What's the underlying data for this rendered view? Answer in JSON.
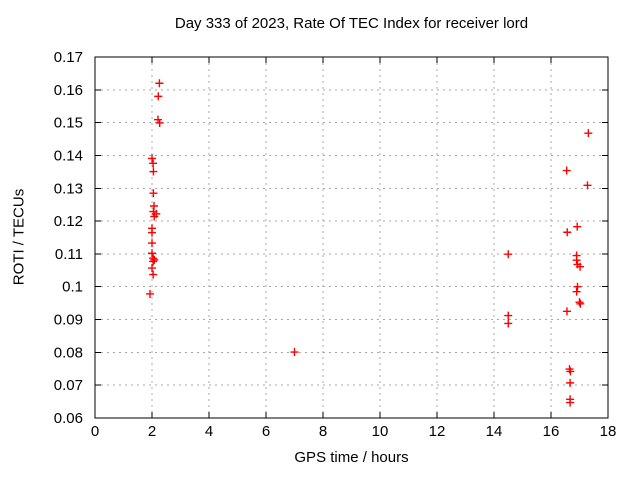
{
  "chart_data": {
    "type": "scatter",
    "title": "Day 333 of 2023, Rate Of TEC Index for receiver lord",
    "xlabel": "GPS time / hours",
    "ylabel": "ROTI / TECUs",
    "xlim": [
      0,
      18
    ],
    "ylim": [
      0.06,
      0.17
    ],
    "xticks": [
      0,
      2,
      4,
      6,
      8,
      10,
      12,
      14,
      16,
      18
    ],
    "xtick_labels": [
      "0",
      "2",
      "4",
      "6",
      "8",
      "10",
      "12",
      "14",
      "16",
      "18"
    ],
    "yticks": [
      0.06,
      0.07,
      0.08,
      0.09,
      0.1,
      0.11,
      0.12,
      0.13,
      0.14,
      0.15,
      0.16,
      0.17
    ],
    "ytick_labels": [
      "0.06",
      "0.07",
      "0.08",
      "0.09",
      "0.1",
      "0.11",
      "0.12",
      "0.13",
      "0.14",
      "0.15",
      "0.16",
      "0.17"
    ],
    "grid": true,
    "legend_position": "none",
    "marker": "plus",
    "marker_color": "#ff0000",
    "grid_color": "#a8a8a8",
    "axis_color": "#000000",
    "background_color": "#ffffff",
    "points": [
      [
        2.26,
        0.162
      ],
      [
        2.22,
        0.158
      ],
      [
        2.21,
        0.1509
      ],
      [
        2.27,
        0.1499
      ],
      [
        2.0,
        0.1391
      ],
      [
        2.04,
        0.1376
      ],
      [
        2.05,
        0.1351
      ],
      [
        2.05,
        0.1285
      ],
      [
        2.07,
        0.1246
      ],
      [
        2.05,
        0.1229
      ],
      [
        2.15,
        0.1222
      ],
      [
        2.08,
        0.1214
      ],
      [
        2.0,
        0.1178
      ],
      [
        2.0,
        0.1165
      ],
      [
        2.0,
        0.1133
      ],
      [
        2.0,
        0.1102
      ],
      [
        2.04,
        0.1087
      ],
      [
        2.08,
        0.1082
      ],
      [
        2.04,
        0.1077
      ],
      [
        2.0,
        0.1057
      ],
      [
        2.04,
        0.1037
      ],
      [
        1.93,
        0.0978
      ],
      [
        7.0,
        0.0801
      ],
      [
        14.5,
        0.1099
      ],
      [
        14.5,
        0.0912
      ],
      [
        14.5,
        0.0888
      ],
      [
        17.31,
        0.1468
      ],
      [
        16.55,
        0.1354
      ],
      [
        17.28,
        0.1309
      ],
      [
        16.92,
        0.1183
      ],
      [
        16.57,
        0.1166
      ],
      [
        16.9,
        0.1095
      ],
      [
        16.9,
        0.1081
      ],
      [
        16.93,
        0.1068
      ],
      [
        17.02,
        0.1061
      ],
      [
        16.93,
        0.1
      ],
      [
        16.9,
        0.0985
      ],
      [
        17.0,
        0.0953
      ],
      [
        17.03,
        0.0948
      ],
      [
        16.56,
        0.0925
      ],
      [
        16.65,
        0.0749
      ],
      [
        16.68,
        0.0742
      ],
      [
        16.67,
        0.0707
      ],
      [
        16.67,
        0.0657
      ],
      [
        16.67,
        0.0647
      ]
    ]
  }
}
